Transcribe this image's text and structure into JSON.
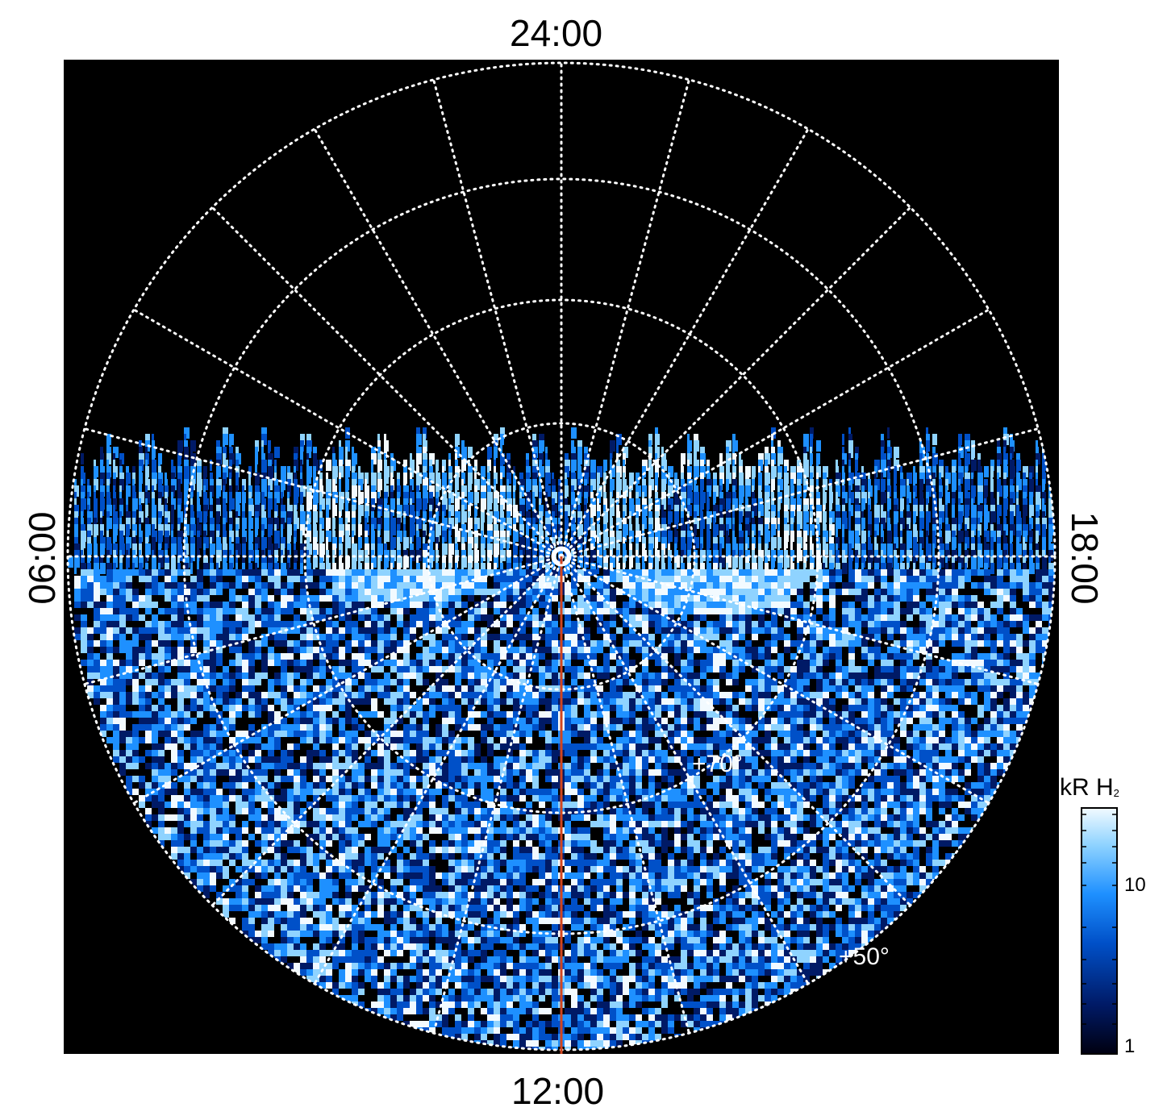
{
  "labels": {
    "top": "24:00",
    "bottom": "12:00",
    "left": "06:00",
    "right": "18:00",
    "lat_inner": "+70°",
    "lat_outer": "+50°"
  },
  "colorbar": {
    "title": "kR H",
    "title_sub": "2",
    "ticks": [
      "10",
      "1"
    ],
    "colors": [
      "#000010",
      "#001a66",
      "#0050c8",
      "#1e90ff",
      "#8fd3ff",
      "#f2faff"
    ]
  },
  "colors": {
    "background": "#000000",
    "grid": "#ffffff",
    "meridian": "#d2451e"
  }
}
